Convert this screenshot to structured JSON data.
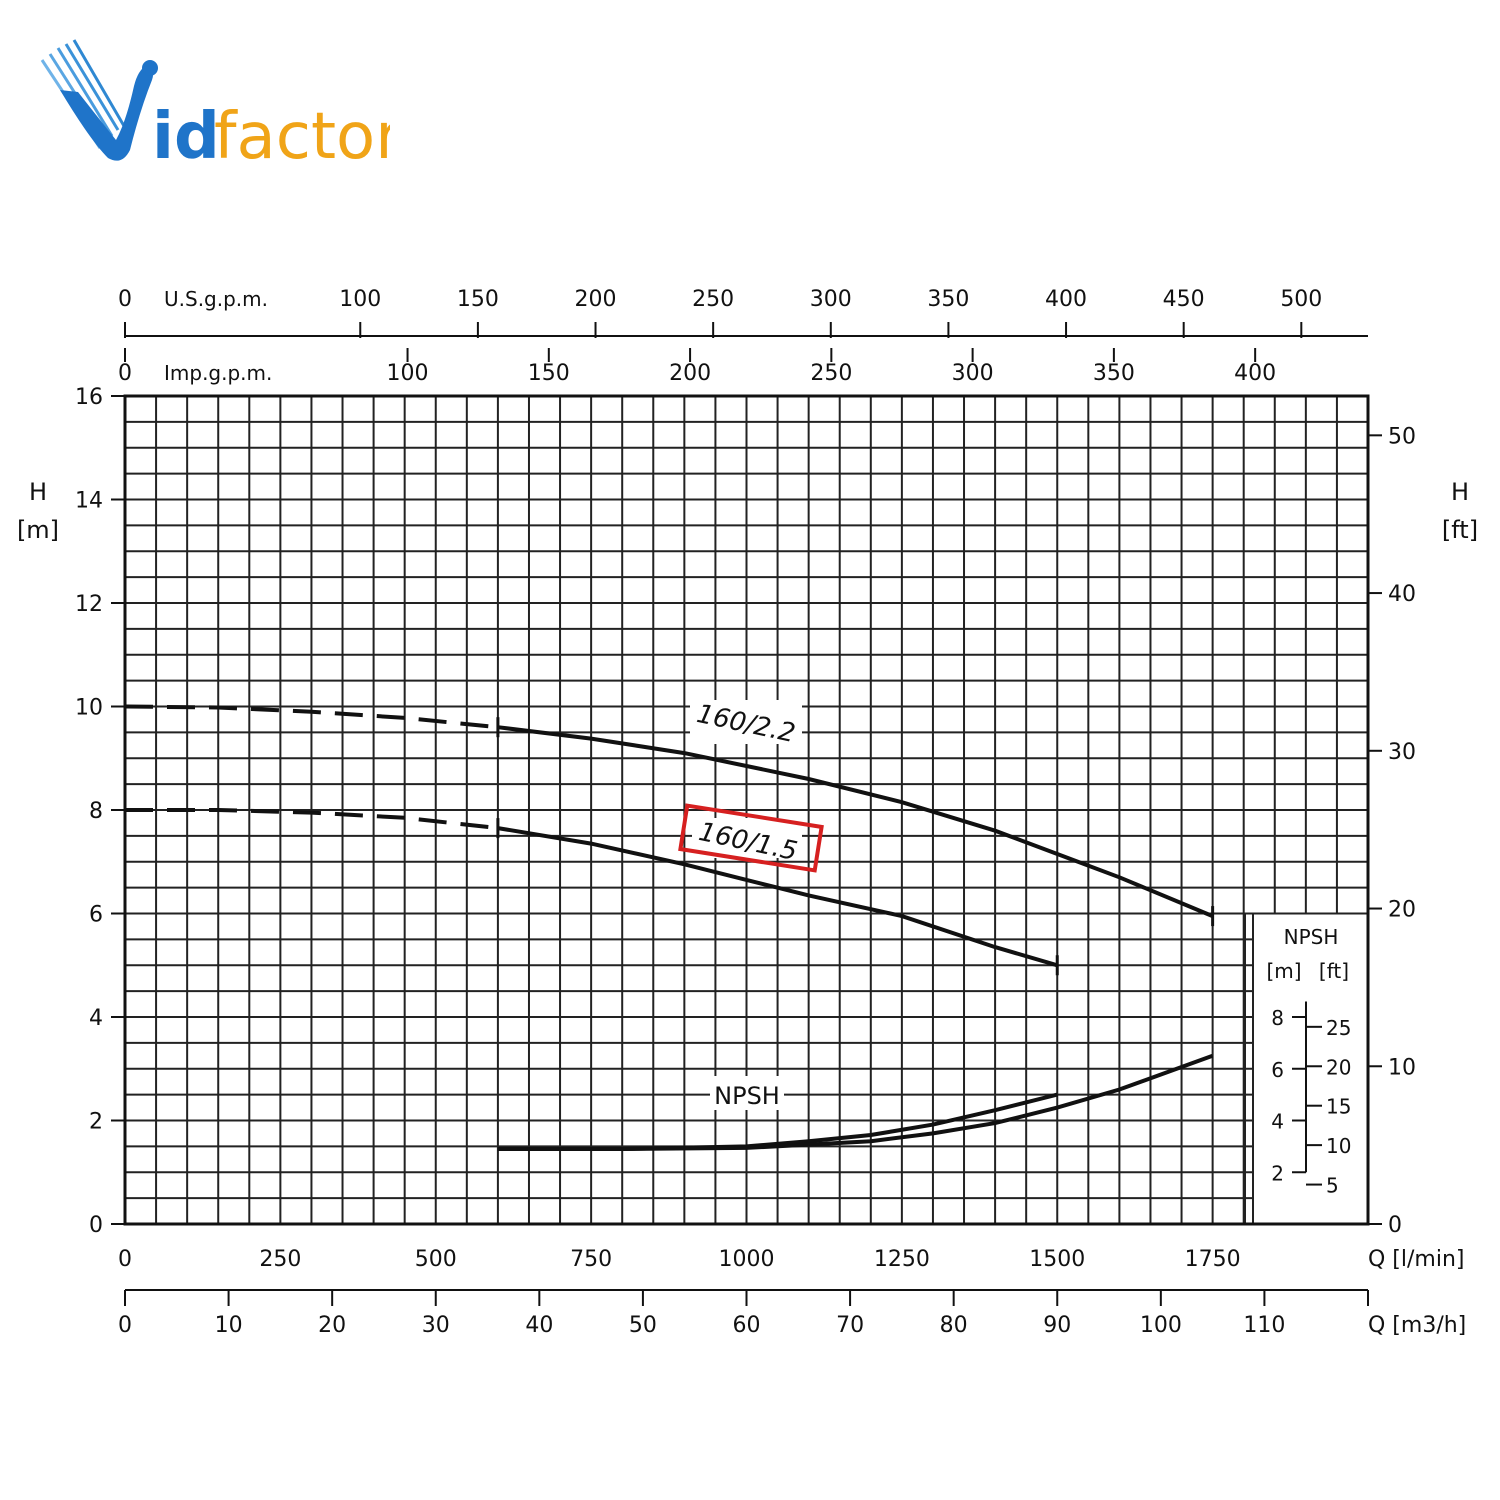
{
  "brand": {
    "logo_text_v": "V",
    "logo_text_id": "id",
    "logo_text_factor": "factor",
    "blue": "#1f74c9",
    "orange": "#f0a418"
  },
  "chart_data": {
    "type": "line",
    "x_label": "Q [l/min]",
    "x_ticks": [
      0,
      250,
      500,
      750,
      1000,
      1250,
      1500,
      1750
    ],
    "x_lim": [
      0,
      2000
    ],
    "x2_label": "Q [m3/h]",
    "x2_ticks": [
      0,
      10,
      20,
      30,
      40,
      50,
      60,
      70,
      80,
      90,
      100,
      110
    ],
    "top1_label": "U.S.g.p.m.",
    "top1_ticks": [
      0,
      100,
      150,
      200,
      250,
      300,
      350,
      400,
      450,
      500
    ],
    "top2_label": "Imp.g.p.m.",
    "top2_ticks": [
      0,
      100,
      150,
      200,
      250,
      300,
      350,
      400
    ],
    "y_label_left": "H",
    "y_unit_left": "[m]",
    "y_ticks_left": [
      0,
      2,
      4,
      6,
      8,
      10,
      12,
      14,
      16
    ],
    "y_lim": [
      0,
      16
    ],
    "y_label_right": "H",
    "y_unit_right": "[ft]",
    "y_ticks_right": [
      0,
      10,
      20,
      30,
      40,
      50
    ],
    "npsh_title": "NPSH",
    "npsh_unit_m": "[m]",
    "npsh_unit_ft": "[ft]",
    "npsh_ticks_m": [
      2,
      4,
      6,
      8
    ],
    "npsh_ticks_ft": [
      5,
      10,
      15,
      20,
      25
    ],
    "npsh_label": "NPSH",
    "grid": true,
    "series": [
      {
        "name": "160/2.2",
        "highlighted": false,
        "dashed_x": [
          0,
          150,
          300,
          450,
          600
        ],
        "dashed_y": [
          10.0,
          9.98,
          9.9,
          9.78,
          9.6
        ],
        "solid_x": [
          600,
          750,
          900,
          1000,
          1100,
          1250,
          1400,
          1500,
          1600,
          1750
        ],
        "solid_y": [
          9.6,
          9.38,
          9.1,
          8.85,
          8.6,
          8.15,
          7.6,
          7.15,
          6.7,
          5.95
        ]
      },
      {
        "name": "160/1.5",
        "highlighted": true,
        "dashed_x": [
          0,
          150,
          300,
          450,
          600
        ],
        "dashed_y": [
          8.0,
          8.0,
          7.95,
          7.85,
          7.65
        ],
        "solid_x": [
          600,
          750,
          900,
          1000,
          1100,
          1250,
          1400,
          1500
        ],
        "solid_y": [
          7.65,
          7.35,
          6.95,
          6.65,
          6.35,
          5.95,
          5.35,
          5.0
        ]
      },
      {
        "name": "NPSH 160/1.5",
        "dashed_x": [],
        "dashed_y": [],
        "solid_x": [
          600,
          800,
          1000,
          1100,
          1200,
          1300,
          1400,
          1500
        ],
        "solid_y": [
          1.45,
          1.45,
          1.5,
          1.6,
          1.72,
          1.92,
          2.2,
          2.5
        ]
      },
      {
        "name": "NPSH 160/2.2",
        "dashed_x": [],
        "dashed_y": [],
        "solid_x": [
          600,
          800,
          1000,
          1200,
          1300,
          1400,
          1500,
          1600,
          1750
        ],
        "solid_y": [
          1.45,
          1.45,
          1.47,
          1.6,
          1.75,
          1.95,
          2.25,
          2.6,
          3.25
        ]
      }
    ],
    "highlight_color": "#d62020"
  }
}
